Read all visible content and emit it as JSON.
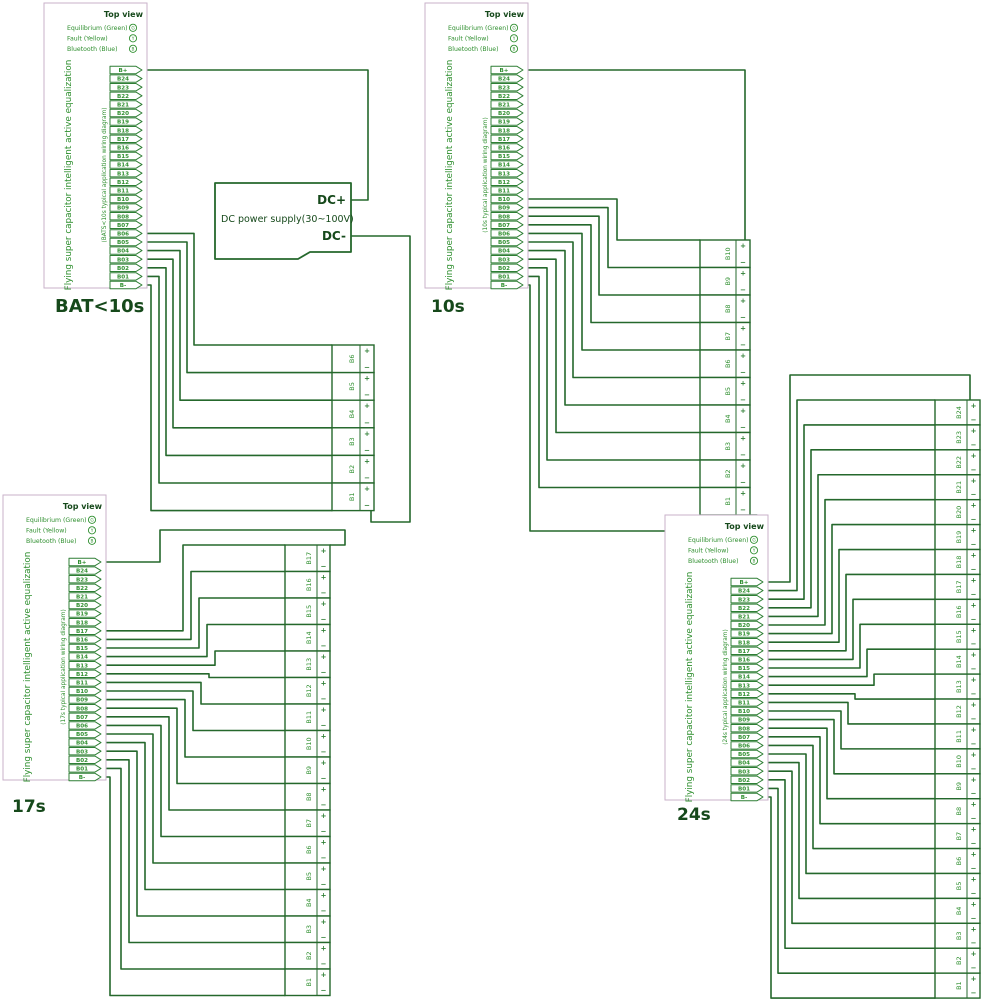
{
  "page": {
    "background": "#ffffff"
  },
  "board": {
    "top_view": "Top view",
    "legend": [
      {
        "text": "Equilibrium  (Green)",
        "symbol": "G"
      },
      {
        "text": "Fault   (Yellow)",
        "symbol": "Y"
      },
      {
        "text": "Bluetooth  (Blue)",
        "symbol": "B"
      }
    ],
    "title": "Flying super capacitor intelligent active equalization",
    "terminals": [
      "B+",
      "B24",
      "B23",
      "B22",
      "B21",
      "B20",
      "B19",
      "B18",
      "B17",
      "B16",
      "B15",
      "B14",
      "B13",
      "B12",
      "B11",
      "B10",
      "B09",
      "B08",
      "B07",
      "B06",
      "B05",
      "B04",
      "B03",
      "B02",
      "B01",
      "B-"
    ]
  },
  "power_supply": {
    "label": "DC power supply(30~100V)",
    "positive": "DC+",
    "negative": "DC-"
  },
  "cell_marks": {
    "plus": "+",
    "minus": "−"
  },
  "diagrams": [
    {
      "id": "bat-under-10s",
      "label": "BAT<10s",
      "subtitle": "(BATS<10s typical application wiring diagram)",
      "cells": [
        "B6",
        "B5",
        "B4",
        "B3",
        "B2",
        "B1"
      ]
    },
    {
      "id": "10s",
      "label": "10s",
      "subtitle": "(10s typical application wiring diagram)",
      "cells": [
        "B10",
        "B9",
        "B8",
        "B7",
        "B6",
        "B5",
        "B4",
        "B3",
        "B2",
        "B1"
      ]
    },
    {
      "id": "17s",
      "label": "17s",
      "subtitle": "(17s typical application wiring diagram)",
      "cells": [
        "B17",
        "B16",
        "B15",
        "B14",
        "B13",
        "B12",
        "B11",
        "B10",
        "B9",
        "B8",
        "B7",
        "B6",
        "B5",
        "B4",
        "B3",
        "B2",
        "B1"
      ]
    },
    {
      "id": "24s",
      "label": "24s",
      "subtitle": "(24s typical application wiring diagram)",
      "cells": [
        "B24",
        "B23",
        "B22",
        "B21",
        "B20",
        "B19",
        "B18",
        "B17",
        "B16",
        "B15",
        "B14",
        "B13",
        "B12",
        "B11",
        "B10",
        "B9",
        "B8",
        "B7",
        "B6",
        "B5",
        "B4",
        "B3",
        "B2",
        "B1"
      ]
    }
  ],
  "colors": {
    "wire": "#25682c",
    "text_green": "#2f8f2f",
    "board_border": "#c8b2ca",
    "label_dark": "#16491b",
    "terminal_stroke": "#2f7f35"
  }
}
